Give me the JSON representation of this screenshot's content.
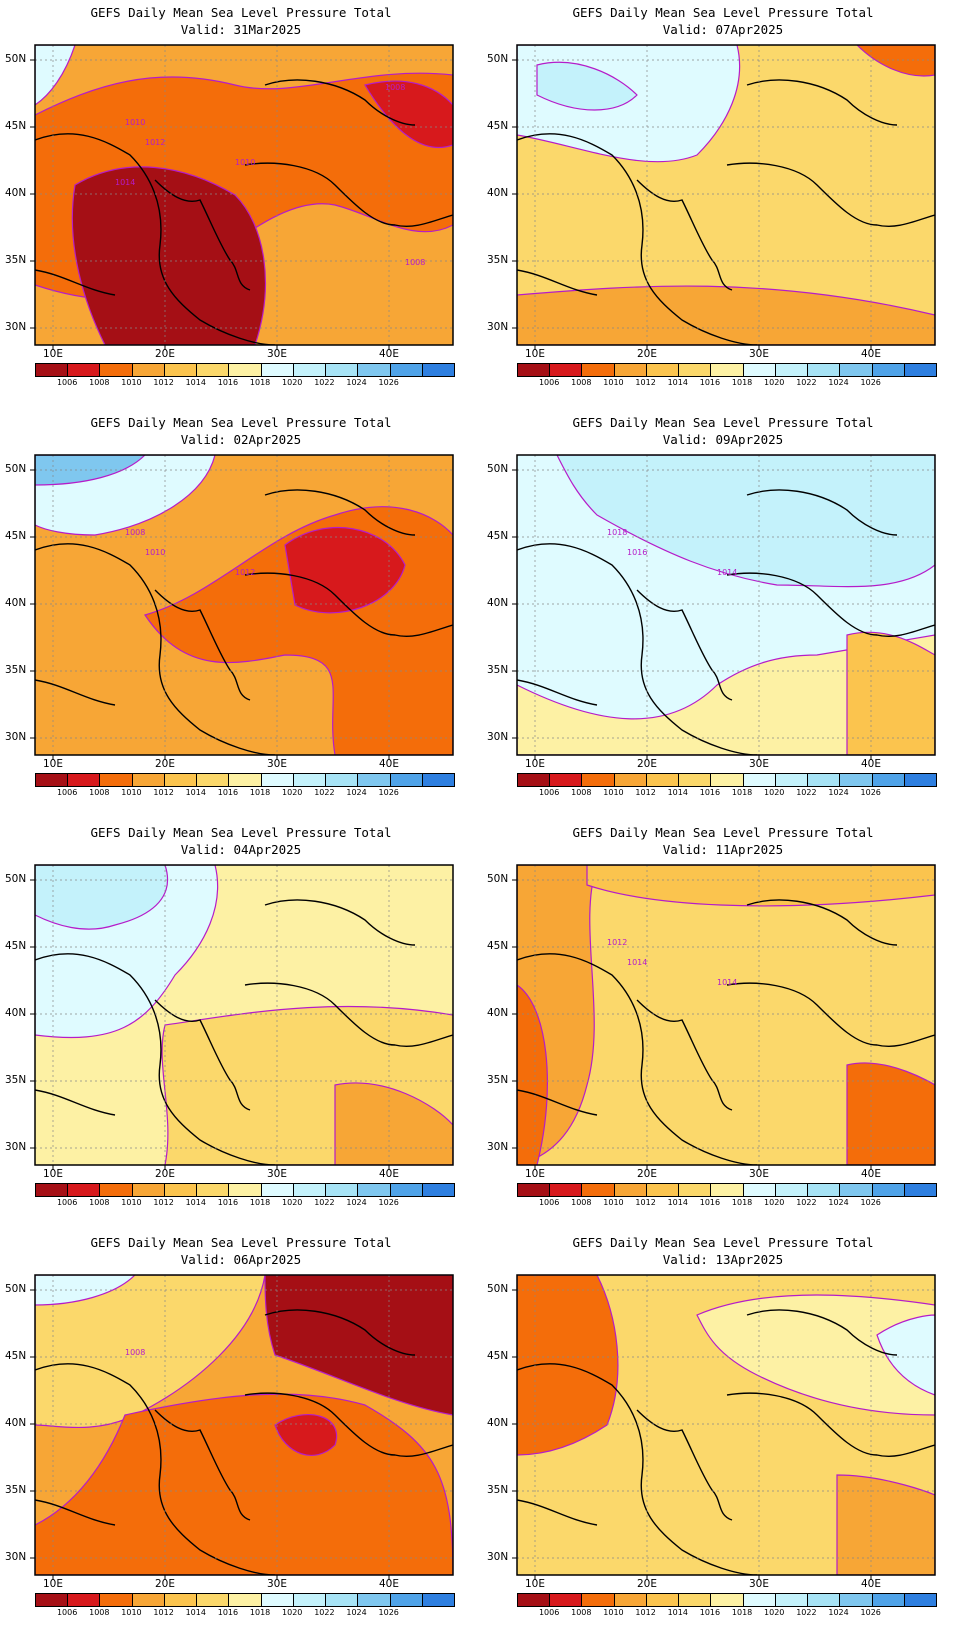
{
  "panels": [
    {
      "title": "GEFS Daily Mean Sea Level Pressure Total",
      "valid": "Valid: 31Mar2025",
      "base": "#f7a636",
      "contours": [
        "1010",
        "1012",
        "1010",
        "1008",
        "1008",
        "1014"
      ]
    },
    {
      "title": "GEFS Daily Mean Sea Level Pressure Total",
      "valid": "Valid: 07Apr2025",
      "base": "#fbd86b",
      "contours": []
    },
    {
      "title": "GEFS Daily Mean Sea Level Pressure Total",
      "valid": "Valid: 02Apr2025",
      "base": "#f7a636",
      "contours": [
        "1008",
        "1010",
        "1012"
      ]
    },
    {
      "title": "GEFS Daily Mean Sea Level Pressure Total",
      "valid": "Valid: 09Apr2025",
      "base": "#dffbff",
      "contours": [
        "1018",
        "1016",
        "1014"
      ]
    },
    {
      "title": "GEFS Daily Mean Sea Level Pressure Total",
      "valid": "Valid: 04Apr2025",
      "base": "#fdf1a4",
      "contours": []
    },
    {
      "title": "GEFS Daily Mean Sea Level Pressure Total",
      "valid": "Valid: 11Apr2025",
      "base": "#fbd86b",
      "contours": [
        "1012",
        "1014",
        "1014"
      ]
    },
    {
      "title": "GEFS Daily Mean Sea Level Pressure Total",
      "valid": "Valid: 06Apr2025",
      "base": "#f7a636",
      "contours": [
        "1008"
      ]
    },
    {
      "title": "GEFS Daily Mean Sea Level Pressure Total",
      "valid": "Valid: 13Apr2025",
      "base": "#fbd86b",
      "contours": []
    }
  ],
  "axes": {
    "lat_labels": [
      "50N",
      "45N",
      "40N",
      "35N",
      "30N"
    ],
    "lon_labels": [
      "10E",
      "20E",
      "30E",
      "40E"
    ]
  },
  "colorbar": {
    "colors": [
      "#a50f15",
      "#d7191c",
      "#f46d0a",
      "#f7a636",
      "#fbc44e",
      "#fbd86b",
      "#fdf1a4",
      "#dffbff",
      "#c4f2fb",
      "#a7e3f5",
      "#7fc7ef",
      "#4fa3e8",
      "#2e7fe0"
    ],
    "labels": [
      "1006",
      "1008",
      "1010",
      "1012",
      "1014",
      "1016",
      "1018",
      "1020",
      "1022",
      "1024",
      "1026"
    ]
  }
}
